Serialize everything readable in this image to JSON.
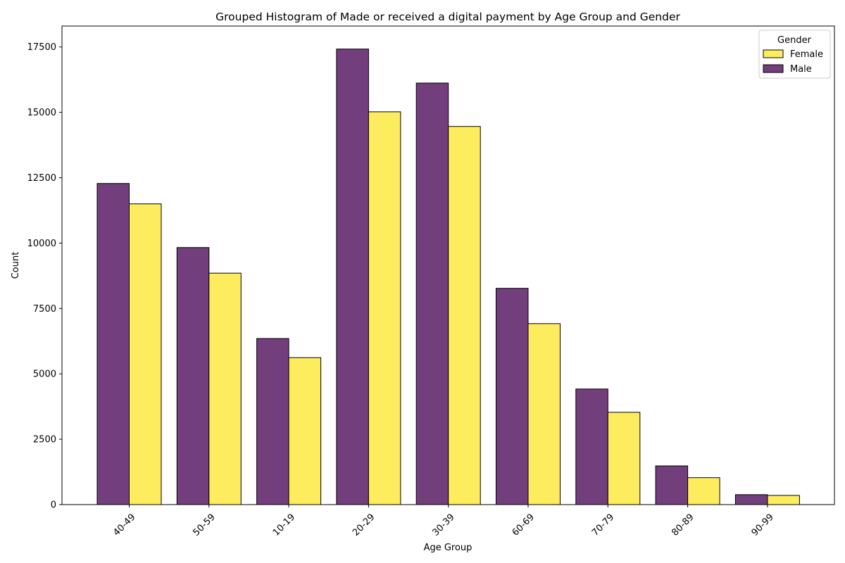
{
  "chart_data": {
    "type": "bar",
    "title": "Grouped Histogram of Made or received a digital payment by Age Group and Gender",
    "xlabel": "Age Group",
    "ylabel": "Count",
    "categories": [
      "40-49",
      "50-59",
      "10-19",
      "20-29",
      "30-39",
      "60-69",
      "70-79",
      "80-89",
      "90-99"
    ],
    "series": [
      {
        "name": "Male",
        "color": "#733e7c",
        "values": [
          12280,
          9830,
          6350,
          17420,
          16120,
          8270,
          4420,
          1480,
          380
        ]
      },
      {
        "name": "Female",
        "color": "#fdec5e",
        "values": [
          11500,
          8850,
          5620,
          15020,
          14460,
          6920,
          3530,
          1030,
          350
        ]
      }
    ],
    "ylim": [
      0,
      18300
    ],
    "yticks": [
      0,
      2500,
      5000,
      7500,
      10000,
      12500,
      15000,
      17500
    ],
    "ytick_labels": [
      "0",
      "2500",
      "5000",
      "7500",
      "10000",
      "12500",
      "15000",
      "17500"
    ],
    "grid": false,
    "legend": {
      "title": "Gender",
      "placement": "top-right",
      "entries": [
        "Female",
        "Male"
      ]
    }
  }
}
